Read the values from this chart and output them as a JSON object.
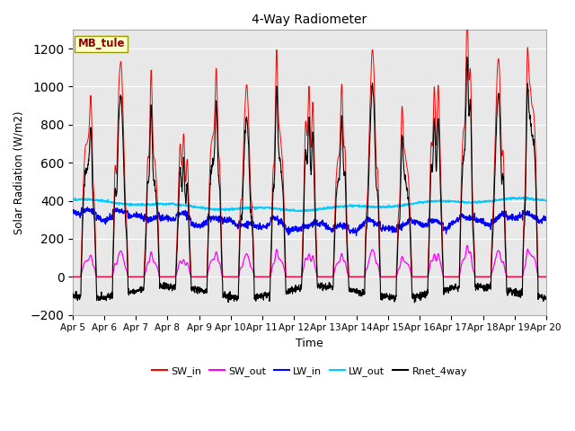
{
  "title": "4-Way Radiometer",
  "xlabel": "Time",
  "ylabel": "Solar Radiation (W/m2)",
  "ylim": [
    -200,
    1300
  ],
  "yticks": [
    -200,
    0,
    200,
    400,
    600,
    800,
    1000,
    1200
  ],
  "station_label": "MB_tule",
  "colors": {
    "SW_in": "#ff0000",
    "SW_out": "#ff00ff",
    "LW_in": "#0000ff",
    "LW_out": "#00ccff",
    "Rnet_4way": "#000000"
  },
  "plot_bg_color": "#e8e8e8",
  "grid_color": "#ffffff"
}
